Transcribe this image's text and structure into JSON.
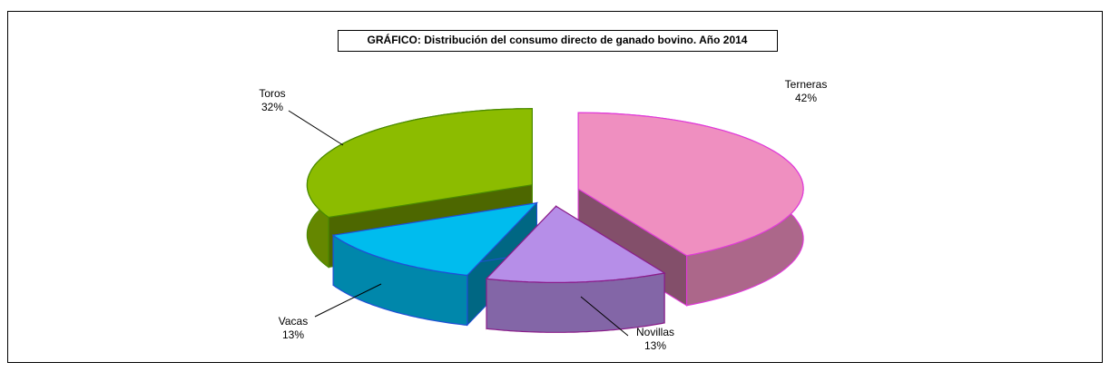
{
  "chart_data": {
    "type": "pie3d",
    "title": "GRÁFICO: Distribución del consumo directo de  ganado bovino. Año 2014",
    "categories": [
      "Terneras",
      "Novillas",
      "Vacas",
      "Toros"
    ],
    "values": [
      42,
      13,
      13,
      32
    ],
    "value_labels": [
      "42%",
      "13%",
      "13%",
      "32%"
    ],
    "colors": [
      "#ef8fc0",
      "#b68ee8",
      "#00bcee",
      "#8cbc00"
    ],
    "edge_colors": [
      "#e03ad8",
      "#8a1c8a",
      "#1f4fd6",
      "#4a8a00"
    ]
  }
}
